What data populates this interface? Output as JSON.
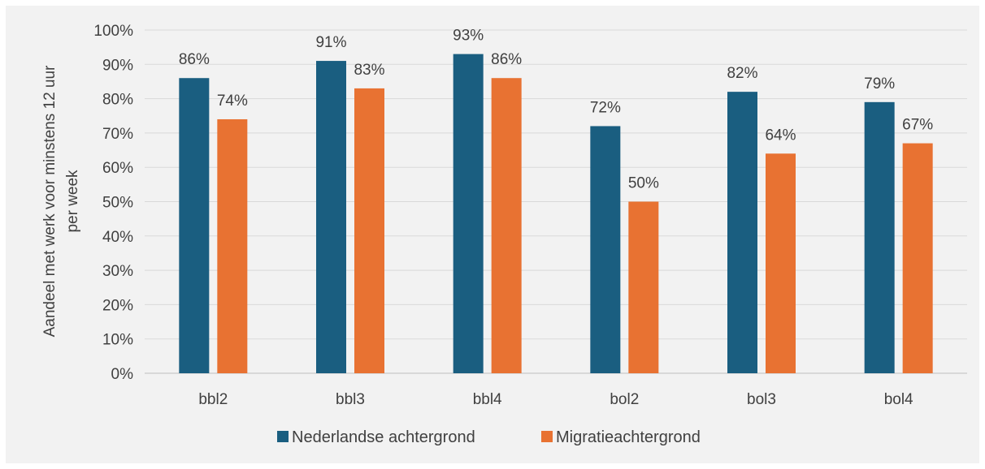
{
  "chart_data": {
    "type": "bar",
    "title": "",
    "ylabel_lines": [
      "Aandeel met werk voor minstens 12 uur",
      "per week"
    ],
    "xlabel": "",
    "ylim": [
      0,
      100
    ],
    "yticks": [
      0,
      10,
      20,
      30,
      40,
      50,
      60,
      70,
      80,
      90,
      100
    ],
    "ytick_labels": [
      "0%",
      "10%",
      "20%",
      "30%",
      "40%",
      "50%",
      "60%",
      "70%",
      "80%",
      "90%",
      "100%"
    ],
    "categories": [
      "bbl2",
      "bbl3",
      "bbl4",
      "bol2",
      "bol3",
      "bol4"
    ],
    "series": [
      {
        "name": "Nederlandse achtergrond",
        "color": "#1a5e80",
        "values": [
          86,
          91,
          93,
          72,
          82,
          79
        ],
        "labels": [
          "86%",
          "91%",
          "93%",
          "72%",
          "82%",
          "79%"
        ]
      },
      {
        "name": "Migratieachtergrond",
        "color": "#e87232",
        "values": [
          74,
          83,
          86,
          50,
          64,
          67
        ],
        "labels": [
          "74%",
          "83%",
          "86%",
          "50%",
          "64%",
          "67%"
        ]
      }
    ],
    "grid": true,
    "legend_position": "bottom"
  }
}
